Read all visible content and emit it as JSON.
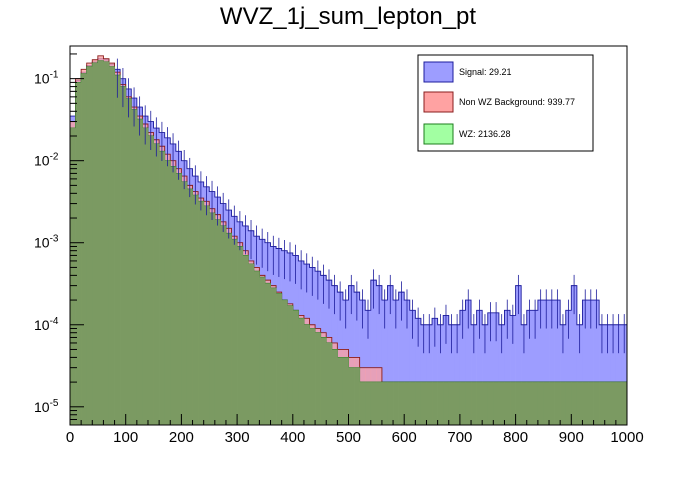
{
  "chart_data": {
    "type": "histogram",
    "title": "WVZ_1j_sum_lepton_pt",
    "xlabel": "",
    "ylabel": "",
    "xlim": [
      0,
      1000
    ],
    "ylog": true,
    "ylim": [
      6e-06,
      0.25
    ],
    "bin_width": 10,
    "x_ticks": [
      "0",
      "100",
      "200",
      "300",
      "400",
      "500",
      "600",
      "700",
      "800",
      "900",
      "1000"
    ],
    "y_ticks": [
      {
        "value": 1e-05,
        "label": "10^-5"
      },
      {
        "value": 0.0001,
        "label": "10^-4"
      },
      {
        "value": 0.001,
        "label": "10^-3"
      },
      {
        "value": 0.01,
        "label": "10^-2"
      },
      {
        "value": 0.1,
        "label": "10^-1"
      }
    ],
    "legend_position": "top-right",
    "series": [
      {
        "name": "Signal",
        "legend_label": "Signal: 29.21",
        "integral": 29.21,
        "color": "#9d9dff",
        "edge": "#1c1c9c",
        "values": [
          0.035,
          0.095,
          0.12,
          0.145,
          0.16,
          0.175,
          0.17,
          0.15,
          0.13,
          0.1,
          0.075,
          0.058,
          0.045,
          0.035,
          0.03,
          0.025,
          0.022,
          0.019,
          0.016,
          0.013,
          0.01,
          0.008,
          0.0065,
          0.0055,
          0.0048,
          0.0042,
          0.0036,
          0.003,
          0.0025,
          0.0021,
          0.0018,
          0.0016,
          0.0014,
          0.0012,
          0.0011,
          0.001,
          0.0009,
          0.00085,
          0.0008,
          0.00075,
          0.0007,
          0.0006,
          0.00055,
          0.0005,
          0.00045,
          0.0004,
          0.00035,
          0.0003,
          0.00025,
          0.0002,
          0.0003,
          0.00025,
          0.0002,
          0.00015,
          0.00035,
          0.0003,
          0.0002,
          0.0003,
          0.0002,
          0.00025,
          0.0002,
          0.00015,
          0.00012,
          0.0001,
          0.0001,
          0.00012,
          0.0001,
          0.00013,
          0.0001,
          0.0001,
          0.00015,
          0.0002,
          0.0001,
          0.00015,
          0.0001,
          0.00014,
          0.00014,
          0.0001,
          0.00015,
          0.00013,
          0.0003,
          0.0001,
          0.00015,
          0.00015,
          0.0002,
          0.0002,
          0.0002,
          0.0002,
          0.0001,
          0.00015,
          0.0003,
          0.0001,
          0.0002,
          0.0002,
          0.0002,
          0.0001,
          0.0001,
          0.0001,
          0.0001,
          0.0001
        ]
      },
      {
        "name": "Non WZ Background",
        "legend_label": "Non WZ Background: 939.77",
        "integral": 939.77,
        "color": "#ffa2a2",
        "edge": "#8a1c1c",
        "values": [
          0.03,
          0.1,
          0.13,
          0.155,
          0.17,
          0.19,
          0.175,
          0.155,
          0.12,
          0.085,
          0.06,
          0.045,
          0.035,
          0.028,
          0.022,
          0.018,
          0.015,
          0.012,
          0.01,
          0.008,
          0.0065,
          0.005,
          0.0042,
          0.0035,
          0.0032,
          0.0026,
          0.0022,
          0.0018,
          0.0015,
          0.0012,
          0.001,
          0.0008,
          0.0006,
          0.0005,
          0.0004,
          0.00035,
          0.0003,
          0.00025,
          0.0002,
          0.00018,
          0.00015,
          0.00013,
          0.00012,
          0.0001,
          9e-05,
          8e-05,
          7e-05,
          6e-05,
          5e-05,
          5e-05,
          4e-05,
          4e-05,
          3e-05,
          3e-05,
          3e-05,
          3e-05,
          2e-05,
          2e-05,
          2e-05,
          2e-05,
          2e-05,
          2e-05,
          2e-05,
          2e-05,
          2e-05,
          2e-05,
          2e-05,
          2e-05,
          2e-05,
          2e-05,
          2e-05,
          2e-05,
          2e-05,
          2e-05,
          2e-05,
          2e-05,
          2e-05,
          2e-05,
          2e-05,
          2e-05,
          2e-05,
          2e-05,
          2e-05,
          2e-05,
          2e-05,
          2e-05,
          2e-05,
          2e-05,
          2e-05,
          2e-05,
          2e-05,
          2e-05,
          2e-05,
          2e-05,
          2e-05,
          2e-05,
          2e-05,
          2e-05,
          2e-05,
          2e-05
        ]
      },
      {
        "name": "WZ",
        "legend_label": "WZ: 2136.28",
        "integral": 2136.28,
        "color": "#a2ffa2",
        "edge": "#1c7c1c",
        "values": [
          0.025,
          0.09,
          0.115,
          0.14,
          0.155,
          0.165,
          0.16,
          0.14,
          0.11,
          0.08,
          0.057,
          0.042,
          0.032,
          0.025,
          0.02,
          0.016,
          0.013,
          0.01,
          0.0085,
          0.007,
          0.0055,
          0.0045,
          0.0038,
          0.0032,
          0.0028,
          0.0023,
          0.0019,
          0.0016,
          0.0013,
          0.0011,
          0.0009,
          0.0007,
          0.00055,
          0.00045,
          0.00038,
          0.00032,
          0.00028,
          0.00024,
          0.0002,
          0.00017,
          0.00015,
          0.00012,
          0.0001,
          9e-05,
          8e-05,
          7e-05,
          6e-05,
          5e-05,
          4e-05,
          4e-05,
          3e-05,
          3e-05,
          2e-05,
          2e-05,
          2e-05,
          2e-05,
          2e-05,
          2e-05,
          2e-05,
          2e-05,
          2e-05,
          2e-05,
          2e-05,
          2e-05,
          2e-05,
          2e-05,
          2e-05,
          2e-05,
          2e-05,
          2e-05,
          2e-05,
          2e-05,
          2e-05,
          2e-05,
          2e-05,
          2e-05,
          2e-05,
          2e-05,
          2e-05,
          2e-05,
          2e-05,
          2e-05,
          2e-05,
          2e-05,
          2e-05,
          2e-05,
          2e-05,
          2e-05,
          2e-05,
          2e-05,
          2e-05,
          2e-05,
          2e-05,
          2e-05,
          2e-05,
          2e-05,
          2e-05,
          2e-05,
          2e-05,
          2e-05
        ]
      }
    ],
    "overlap_color": "#7b9a62"
  }
}
